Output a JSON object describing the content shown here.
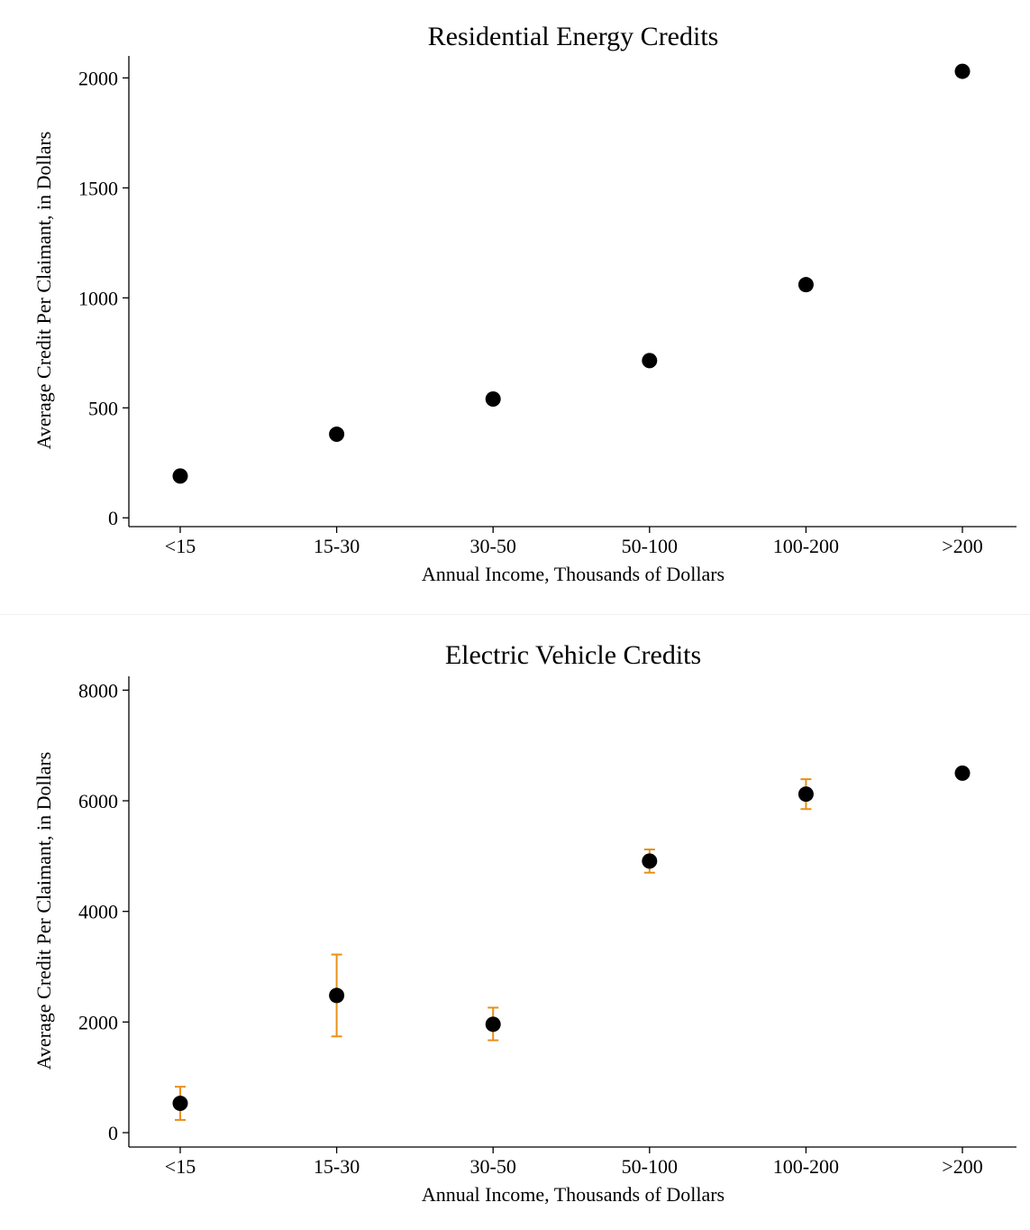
{
  "chart_data": [
    {
      "type": "scatter",
      "title": "Residential Energy Credits",
      "xlabel": "Annual Income, Thousands of Dollars",
      "ylabel": "Average Credit Per Claimant, in Dollars",
      "categories": [
        "<15",
        "15-30",
        "30-50",
        "50-100",
        "100-200",
        ">200"
      ],
      "values": [
        190,
        380,
        540,
        715,
        1060,
        2030
      ],
      "ylim": [
        -40,
        2100
      ],
      "yticks": [
        0,
        500,
        1000,
        1500,
        2000
      ],
      "grid": false,
      "colors": {
        "point": "#000000",
        "axis": "#000000"
      }
    },
    {
      "type": "scatter",
      "title": "Electric Vehicle Credits",
      "xlabel": "Annual Income, Thousands of Dollars",
      "ylabel": "Average Credit Per Claimant, in Dollars",
      "categories": [
        "<15",
        "15-30",
        "30-50",
        "50-100",
        "100-200",
        ">200"
      ],
      "values": [
        530,
        2480,
        1960,
        4910,
        6120,
        6500
      ],
      "error_low": [
        230,
        1740,
        1670,
        4700,
        5850,
        6500
      ],
      "error_high": [
        830,
        3220,
        2260,
        5120,
        6390,
        6500
      ],
      "ylim": [
        -260,
        8250
      ],
      "yticks": [
        0,
        2000,
        4000,
        6000,
        8000
      ],
      "grid": false,
      "colors": {
        "point": "#000000",
        "error_bar": "#e8901a",
        "axis": "#000000"
      }
    }
  ]
}
